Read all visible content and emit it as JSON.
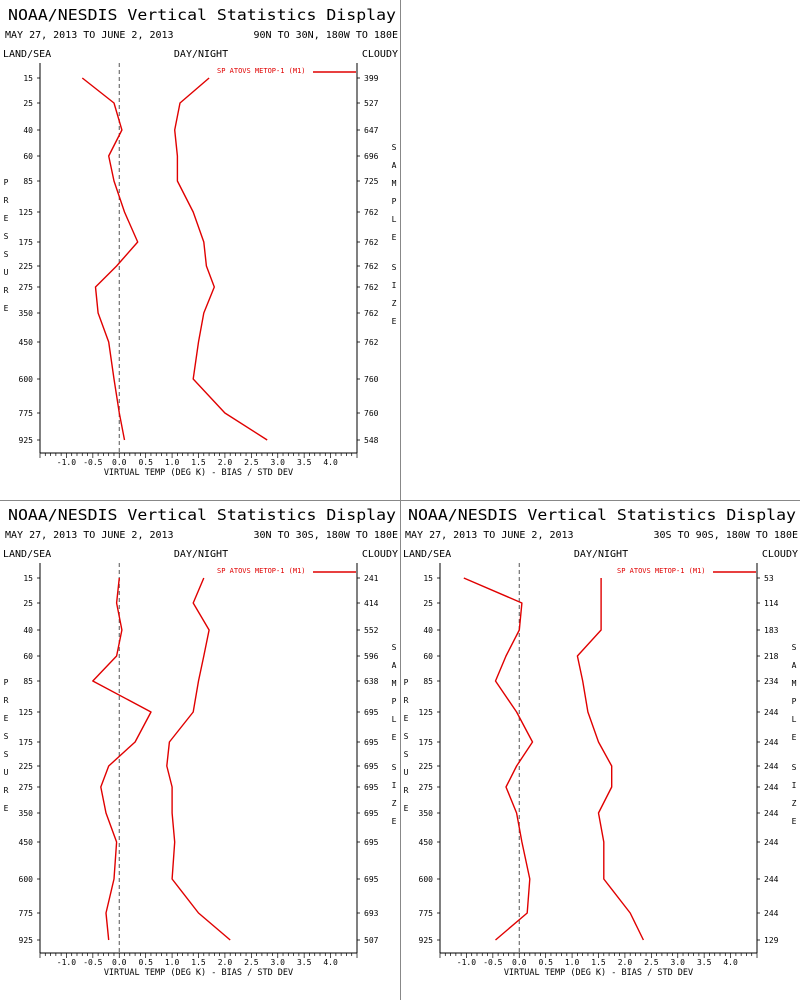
{
  "panels": [
    {
      "header": {
        "title": "NOAA/NESDIS Vertical Statistics Display",
        "date_range": "MAY 27, 2013 TO JUNE 2, 2013",
        "region": "90N TO 30N, 180W TO 180E",
        "left_label": "LAND/SEA",
        "center_label": "DAY/NIGHT",
        "right_label": "CLOUDY"
      },
      "chart_data": {
        "type": "line",
        "xlabel": "VIRTUAL TEMP (DEG K) - BIAS / STD DEV",
        "ylabel": "PRESSURE",
        "y2label": "SAMPLE SIZE",
        "xlim": [
          -1.5,
          4.5
        ],
        "x_ticks": [
          -1.0,
          -0.5,
          0.0,
          0.5,
          1.0,
          1.5,
          2.0,
          2.5,
          3.0,
          3.5,
          4.0
        ],
        "x_tick_labels": [
          "-1.0",
          "-0.5",
          "0.0",
          "0.5",
          "1.0",
          "1.5",
          "2.0",
          "2.5",
          "3.0",
          "3.5",
          "4.0"
        ],
        "pressure_levels": [
          15,
          25,
          40,
          60,
          85,
          125,
          175,
          225,
          275,
          350,
          450,
          600,
          775,
          925
        ],
        "sample_sizes": [
          "399",
          "527",
          "647",
          "696",
          "725",
          "762",
          "762",
          "762",
          "762",
          "762",
          "762",
          "760",
          "760",
          "548"
        ],
        "legend": "SP ATOVS METOP-1 (M1)",
        "series_color": "#e00000",
        "series": [
          {
            "kind": "bias",
            "values": [
              -0.7,
              -0.1,
              0.05,
              -0.2,
              -0.1,
              0.1,
              0.35,
              -0.05,
              -0.45,
              -0.4,
              -0.2,
              -0.1,
              0.0,
              0.1
            ]
          },
          {
            "kind": "std_dev",
            "values": [
              1.7,
              1.15,
              1.05,
              1.1,
              1.1,
              1.4,
              1.6,
              1.65,
              1.8,
              1.6,
              1.5,
              1.4,
              2.0,
              2.8
            ]
          }
        ]
      }
    },
    {
      "header": {
        "title": "NOAA/NESDIS Vertical Statistics Display",
        "date_range": "MAY 27, 2013 TO JUNE 2, 2013",
        "region": "30N TO 30S, 180W TO 180E",
        "left_label": "LAND/SEA",
        "center_label": "DAY/NIGHT",
        "right_label": "CLOUDY"
      },
      "chart_data": {
        "type": "line",
        "xlabel": "VIRTUAL TEMP (DEG K) - BIAS / STD DEV",
        "ylabel": "PRESSURE",
        "y2label": "SAMPLE SIZE",
        "xlim": [
          -1.5,
          4.5
        ],
        "x_ticks": [
          -1.0,
          -0.5,
          0.0,
          0.5,
          1.0,
          1.5,
          2.0,
          2.5,
          3.0,
          3.5,
          4.0
        ],
        "x_tick_labels": [
          "-1.0",
          "-0.5",
          "0.0",
          "0.5",
          "1.0",
          "1.5",
          "2.0",
          "2.5",
          "3.0",
          "3.5",
          "4.0"
        ],
        "pressure_levels": [
          15,
          25,
          40,
          60,
          85,
          125,
          175,
          225,
          275,
          350,
          450,
          600,
          775,
          925
        ],
        "sample_sizes": [
          "241",
          "414",
          "552",
          "596",
          "638",
          "695",
          "695",
          "695",
          "695",
          "695",
          "695",
          "695",
          "693",
          "507"
        ],
        "legend": "SP ATOVS METOP-1 (M1)",
        "series_color": "#e00000",
        "series": [
          {
            "kind": "bias",
            "values": [
              0.0,
              -0.05,
              0.05,
              -0.05,
              -0.5,
              0.6,
              0.3,
              -0.2,
              -0.35,
              -0.25,
              -0.05,
              -0.1,
              -0.25,
              -0.2
            ]
          },
          {
            "kind": "std_dev",
            "values": [
              1.6,
              1.4,
              1.7,
              1.6,
              1.5,
              1.4,
              0.95,
              0.9,
              1.0,
              1.0,
              1.05,
              1.0,
              1.5,
              2.1
            ]
          }
        ]
      }
    },
    {
      "header": {
        "title": "NOAA/NESDIS Vertical Statistics Display",
        "date_range": "MAY 27, 2013 TO JUNE 2, 2013",
        "region": "30S TO 90S, 180W TO 180E",
        "left_label": "LAND/SEA",
        "center_label": "DAY/NIGHT",
        "right_label": "CLOUDY"
      },
      "chart_data": {
        "type": "line",
        "xlabel": "VIRTUAL TEMP (DEG K) - BIAS / STD DEV",
        "ylabel": "PRESSURE",
        "y2label": "SAMPLE SIZE",
        "xlim": [
          -1.5,
          4.5
        ],
        "x_ticks": [
          -1.0,
          -0.5,
          0.0,
          0.5,
          1.0,
          1.5,
          2.0,
          2.5,
          3.0,
          3.5,
          4.0
        ],
        "x_tick_labels": [
          "-1.0",
          "-0.5",
          "0.0",
          "0.5",
          "1.0",
          "1.5",
          "2.0",
          "2.5",
          "3.0",
          "3.5",
          "4.0"
        ],
        "pressure_levels": [
          15,
          25,
          40,
          60,
          85,
          125,
          175,
          225,
          275,
          350,
          450,
          600,
          775,
          925
        ],
        "sample_sizes": [
          "53",
          "114",
          "183",
          "218",
          "234",
          "244",
          "244",
          "244",
          "244",
          "244",
          "244",
          "244",
          "244",
          "129"
        ],
        "legend": "SP ATOVS METOP-1 (M1)",
        "series_color": "#e00000",
        "series": [
          {
            "kind": "bias",
            "values": [
              -1.05,
              0.05,
              0.0,
              -0.25,
              -0.45,
              -0.05,
              0.25,
              -0.05,
              -0.25,
              -0.05,
              0.05,
              0.2,
              0.15,
              -0.45
            ]
          },
          {
            "kind": "std_dev",
            "values": [
              1.55,
              1.55,
              1.55,
              1.1,
              1.2,
              1.3,
              1.5,
              1.75,
              1.75,
              1.5,
              1.6,
              1.6,
              2.1,
              2.35
            ]
          }
        ]
      }
    }
  ]
}
